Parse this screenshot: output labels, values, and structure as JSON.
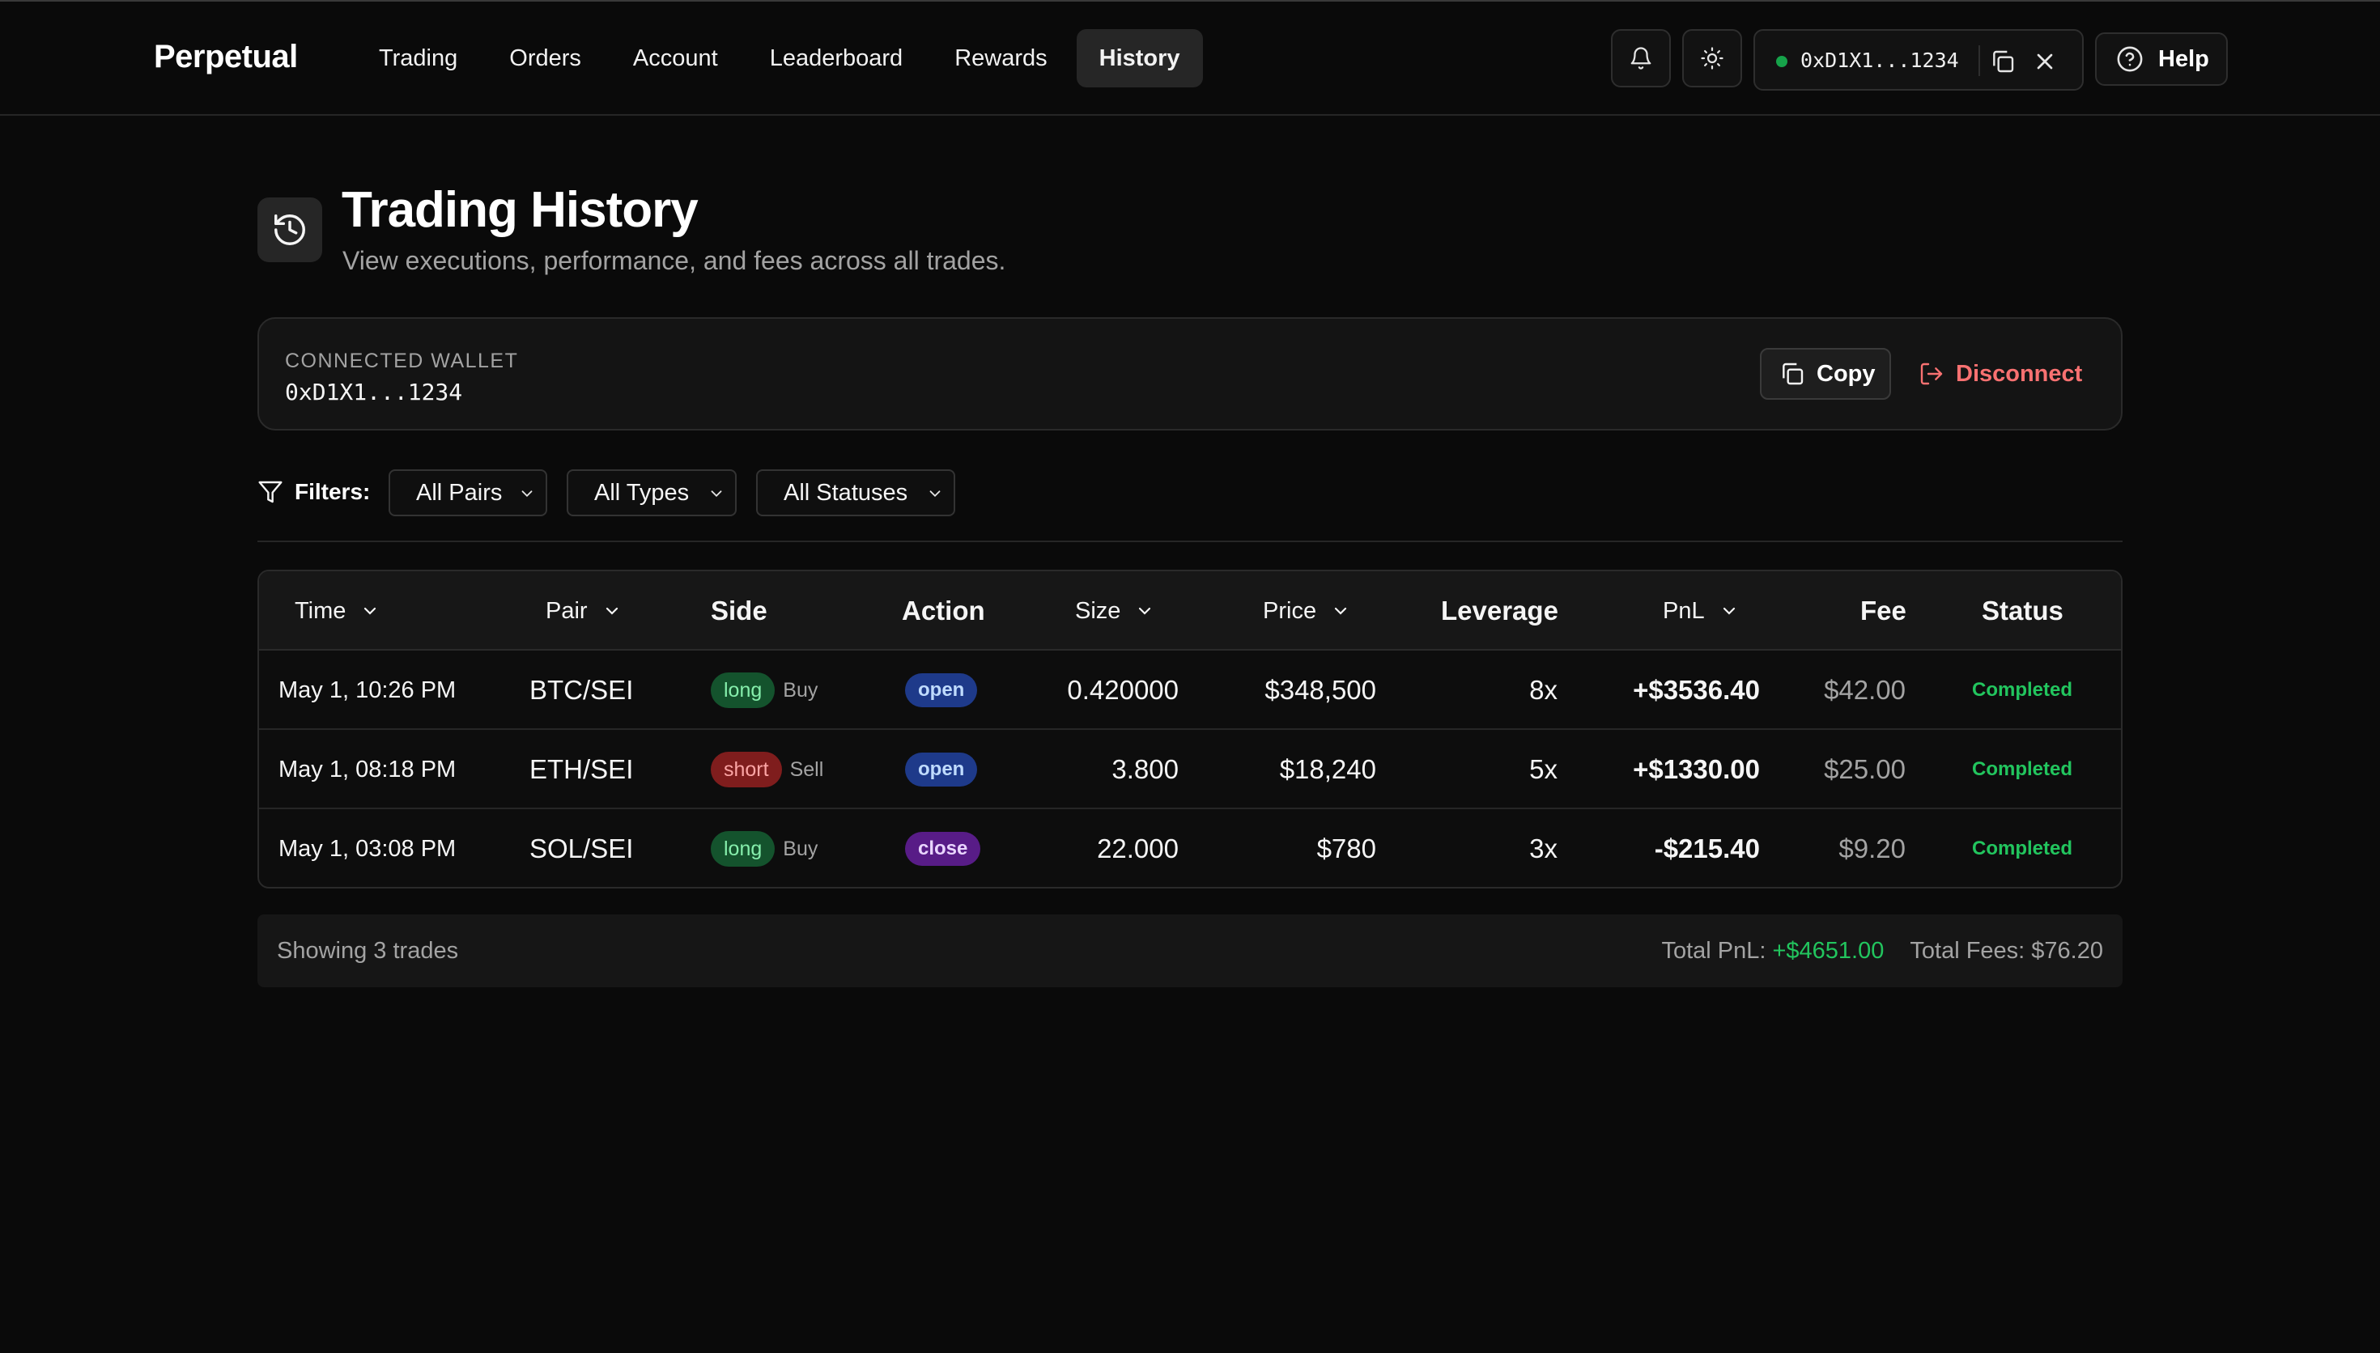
{
  "header": {
    "brand": "Perpetual",
    "nav": [
      "Trading",
      "Orders",
      "Account",
      "Leaderboard",
      "Rewards",
      "History"
    ],
    "active_nav": "History",
    "wallet_address": "0xD1X1...1234",
    "wallet_status_color": "#16a34a",
    "help_label": "Help"
  },
  "page": {
    "title": "Trading History",
    "subtitle": "View executions, performance, and fees across all trades."
  },
  "wallet_card": {
    "label": "CONNECTED WALLET",
    "address": "0xD1X1...1234",
    "copy_label": "Copy",
    "disconnect_label": "Disconnect"
  },
  "filters": {
    "label": "Filters:",
    "pairs": "All Pairs",
    "types": "All Types",
    "statuses": "All Statuses"
  },
  "table": {
    "headers": {
      "time": "Time",
      "pair": "Pair",
      "side": "Side",
      "action": "Action",
      "size": "Size",
      "price": "Price",
      "leverage": "Leverage",
      "pnl": "PnL",
      "fee": "Fee",
      "status": "Status"
    },
    "rows": [
      {
        "time": "May 1, 10:26 PM",
        "pair": "BTC/SEI",
        "side": "long",
        "verb": "Buy",
        "action": "open",
        "size": "0.420000",
        "price": "$348,500",
        "leverage": "8x",
        "pnl": "+$3536.40",
        "fee": "$42.00",
        "status": "Completed"
      },
      {
        "time": "May 1, 08:18 PM",
        "pair": "ETH/SEI",
        "side": "short",
        "verb": "Sell",
        "action": "open",
        "size": "3.800",
        "price": "$18,240",
        "leverage": "5x",
        "pnl": "+$1330.00",
        "fee": "$25.00",
        "status": "Completed"
      },
      {
        "time": "May 1, 03:08 PM",
        "pair": "SOL/SEI",
        "side": "long",
        "verb": "Buy",
        "action": "close",
        "size": "22.000",
        "price": "$780",
        "leverage": "3x",
        "pnl": "-$215.40",
        "fee": "$9.20",
        "status": "Completed"
      }
    ]
  },
  "summary": {
    "showing": "Showing 3 trades",
    "total_pnl_label": "Total PnL:",
    "total_pnl": "+$4651.00",
    "total_fees": "Total Fees: $76.20"
  },
  "colors": {
    "background": "#0a0a0a",
    "positive": "#22c55e",
    "negative": "#ef4444",
    "long_badge": "#14532d",
    "short_badge": "#7f1d1d",
    "open_badge": "#1e3a8a",
    "close_badge": "#581c87",
    "disconnect": "#f87171"
  }
}
